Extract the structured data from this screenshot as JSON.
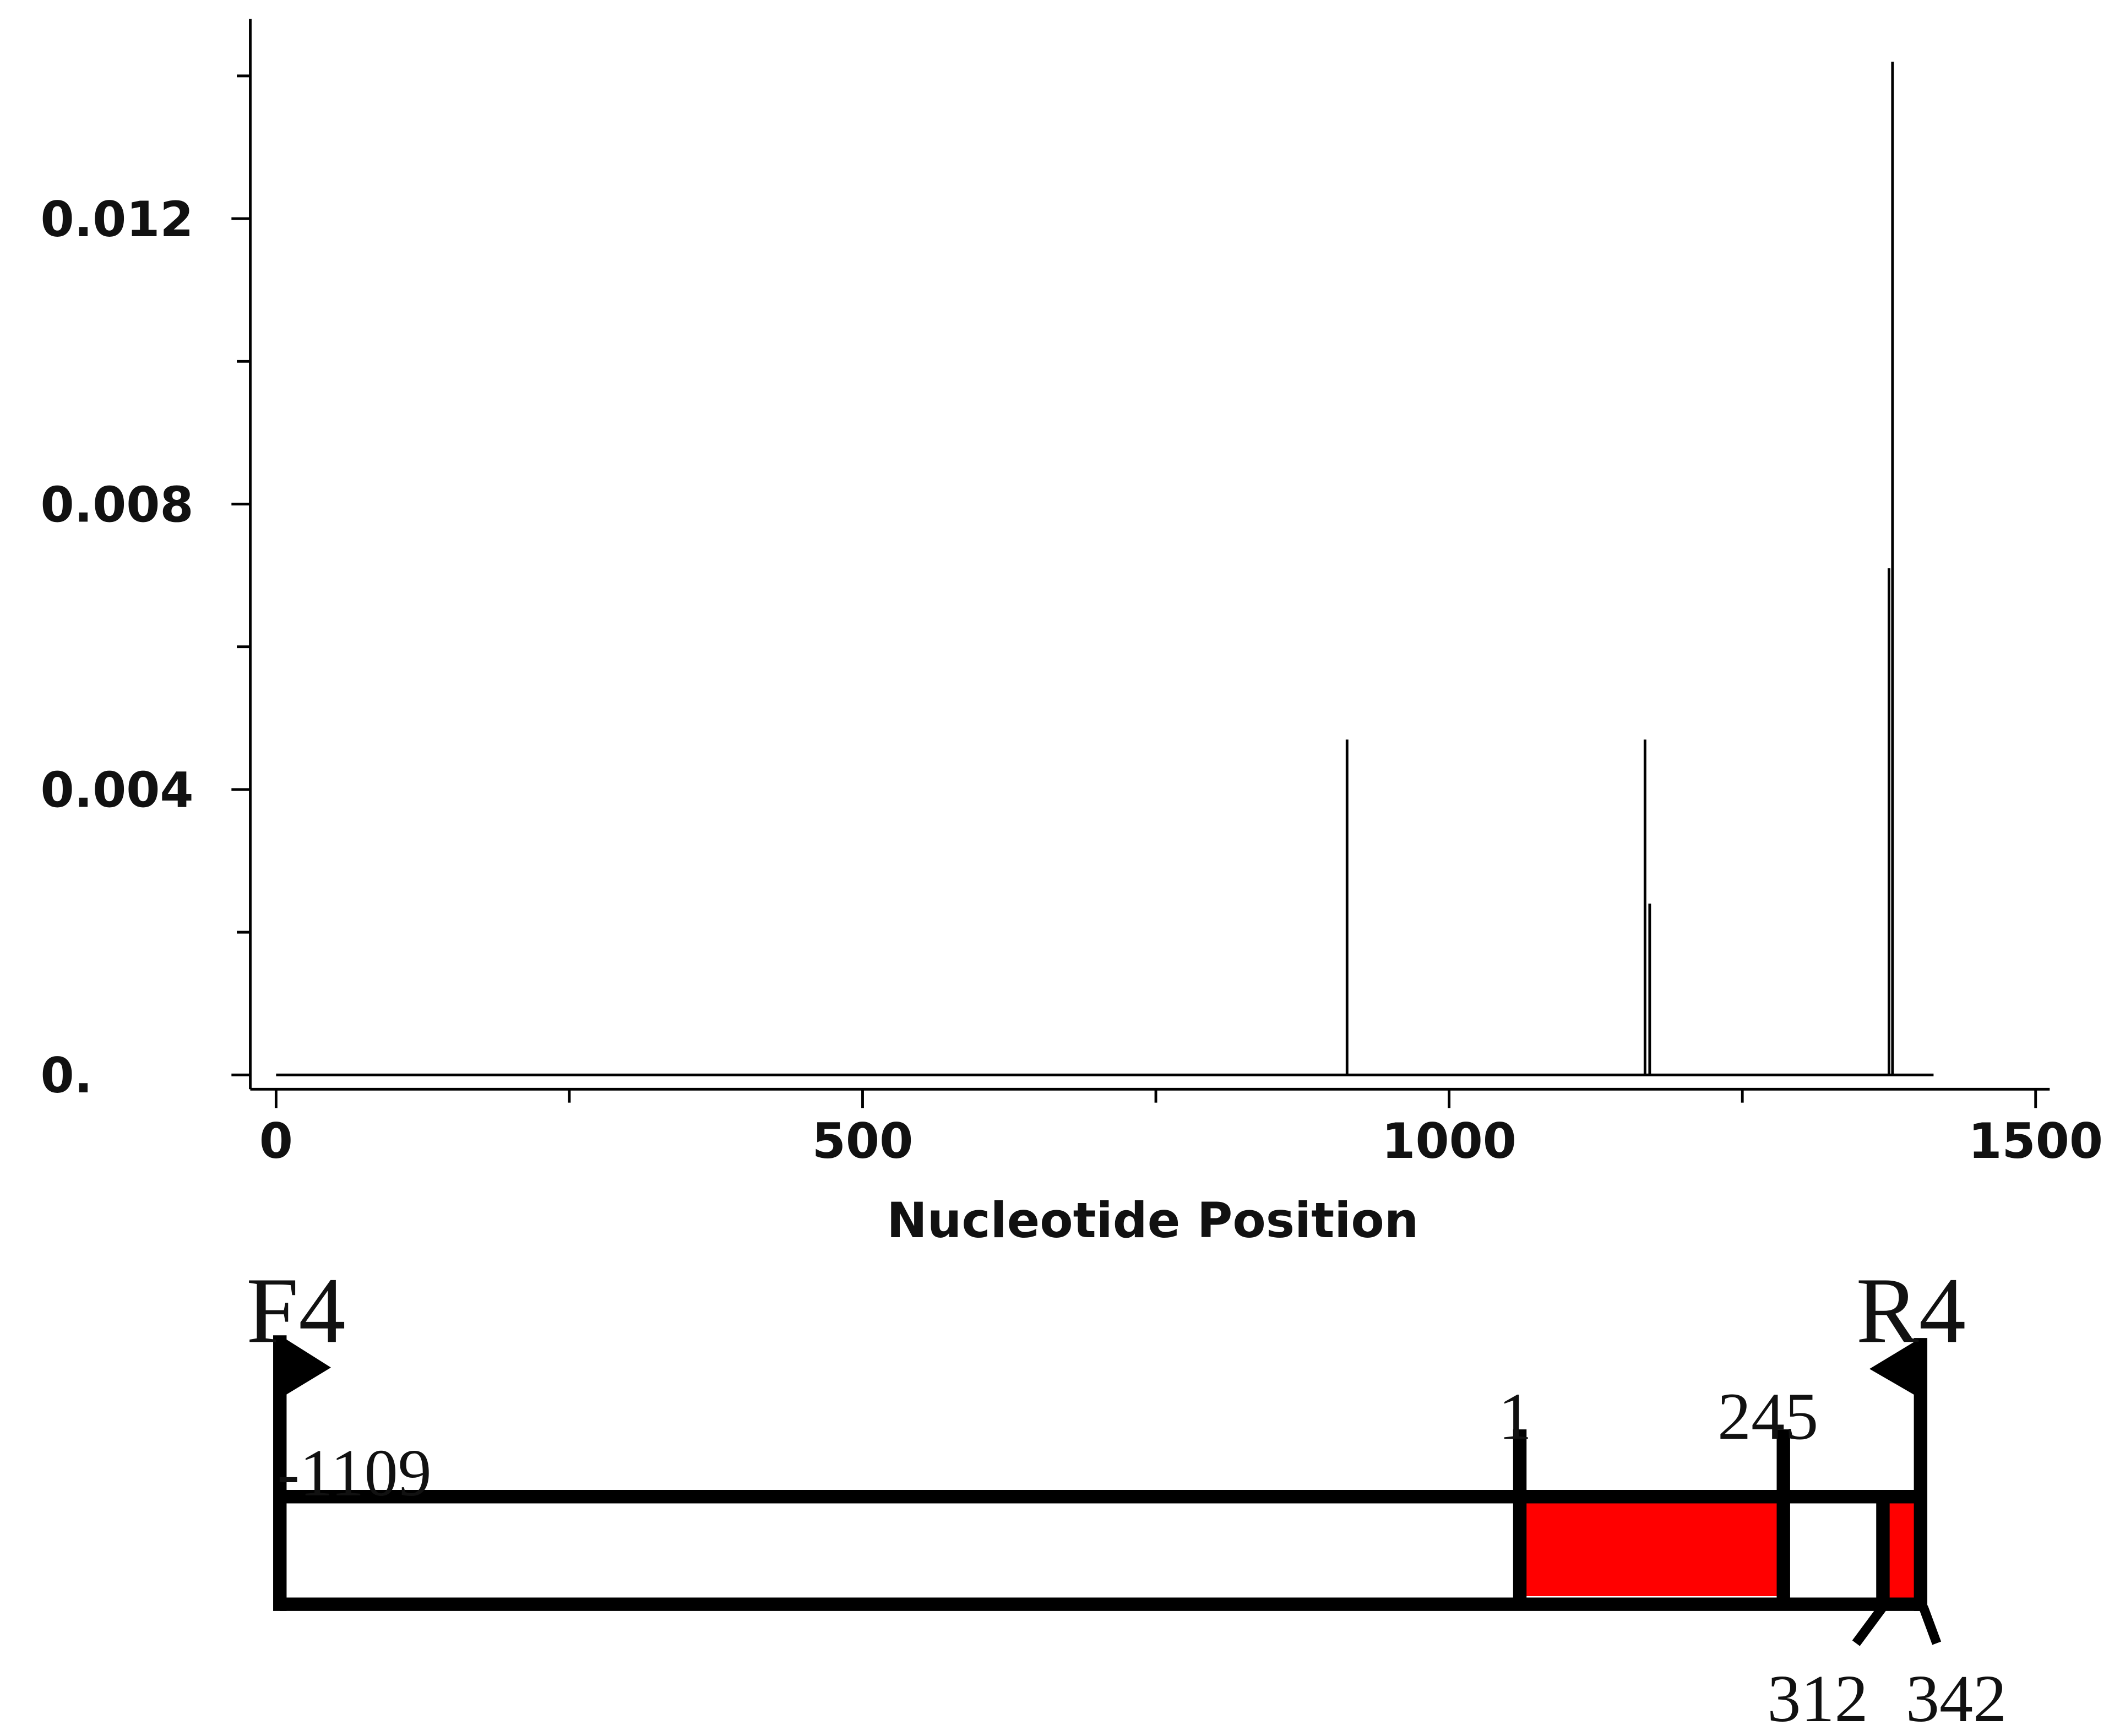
{
  "chart_data": {
    "type": "stem",
    "x_label": "Nucleotide Position",
    "x": [
      913,
      1167,
      1171,
      1375,
      1378
    ],
    "values": [
      0.0047,
      0.0047,
      0.0024,
      0.0071,
      0.0142
    ],
    "sequence_range": [
      0,
      1413
    ],
    "color": "#000000",
    "xlim": [
      -22,
      1512
    ],
    "xticks": [
      0,
      500,
      1000,
      1500
    ],
    "xminor_ticks": [
      250,
      750,
      1250
    ],
    "ylim": [
      -0.0002,
      0.0148
    ],
    "yticks": [
      {
        "value": 0,
        "label": "0."
      },
      0.004,
      0.008,
      0.012
    ],
    "yminor_ticks": [
      0.002,
      0.006,
      0.01,
      0.014
    ],
    "grid": false
  },
  "diagram": {
    "primers": [
      "F4",
      "R4"
    ],
    "labels": [
      "-1109",
      "1",
      "245",
      "312",
      "342"
    ]
  }
}
